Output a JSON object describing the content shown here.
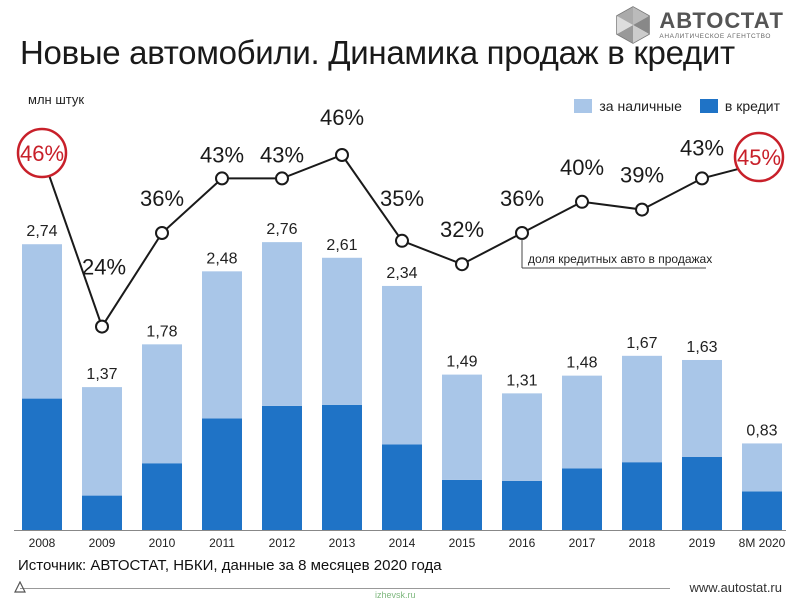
{
  "header": {
    "title": "Новые автомобили. Динамика продаж в кредит",
    "logo_name": "АВТОСТАТ",
    "logo_sub": "АНАЛИТИЧЕСКОЕ АГЕНТСТВО"
  },
  "footer": {
    "source": "Источник: АВТОСТАТ, НБКИ, данные за 8 месяцев 2020 года",
    "site": "www.autostat.ru",
    "watermark": "izhevsk.ru"
  },
  "colors": {
    "cash": "#a9c6e8",
    "credit": "#1f73c6",
    "line": "#1a1a1a",
    "highlight": "#c8202a"
  },
  "chart_data": {
    "type": "bar",
    "stacked": true,
    "title": "Новые автомобили. Динамика продаж в кредит",
    "ylabel": "млн штук",
    "categories": [
      "2008",
      "2009",
      "2010",
      "2011",
      "2012",
      "2013",
      "2014",
      "2015",
      "2016",
      "2017",
      "2018",
      "2019",
      "8М 2020"
    ],
    "totals": [
      "2,74",
      "1,37",
      "1,78",
      "2,48",
      "2,76",
      "2,61",
      "2,34",
      "1,49",
      "1,31",
      "1,48",
      "1,67",
      "1,63",
      "0,83"
    ],
    "total_values": [
      2.74,
      1.37,
      1.78,
      2.48,
      2.76,
      2.61,
      2.34,
      1.49,
      1.31,
      1.48,
      1.67,
      1.63,
      0.83
    ],
    "series": [
      {
        "name": "за наличные",
        "values": [
          1.48,
          1.04,
          1.14,
          1.41,
          1.57,
          1.41,
          1.52,
          1.01,
          0.84,
          0.89,
          1.02,
          0.93,
          0.46
        ]
      },
      {
        "name": "в кредит",
        "values": [
          1.26,
          0.33,
          0.64,
          1.07,
          1.19,
          1.2,
          0.82,
          0.48,
          0.47,
          0.59,
          0.65,
          0.7,
          0.37
        ]
      }
    ],
    "line": {
      "name": "доля кредитных авто в продажах",
      "values": [
        46,
        24,
        36,
        43,
        43,
        46,
        35,
        32,
        36,
        40,
        39,
        43,
        45
      ],
      "labels": [
        "46%",
        "24%",
        "36%",
        "43%",
        "43%",
        "46%",
        "35%",
        "32%",
        "36%",
        "40%",
        "39%",
        "43%",
        "45%"
      ],
      "highlighted": [
        0,
        12
      ]
    },
    "ylim": [
      0,
      3.0
    ],
    "grid": false,
    "legend": "top-right"
  }
}
